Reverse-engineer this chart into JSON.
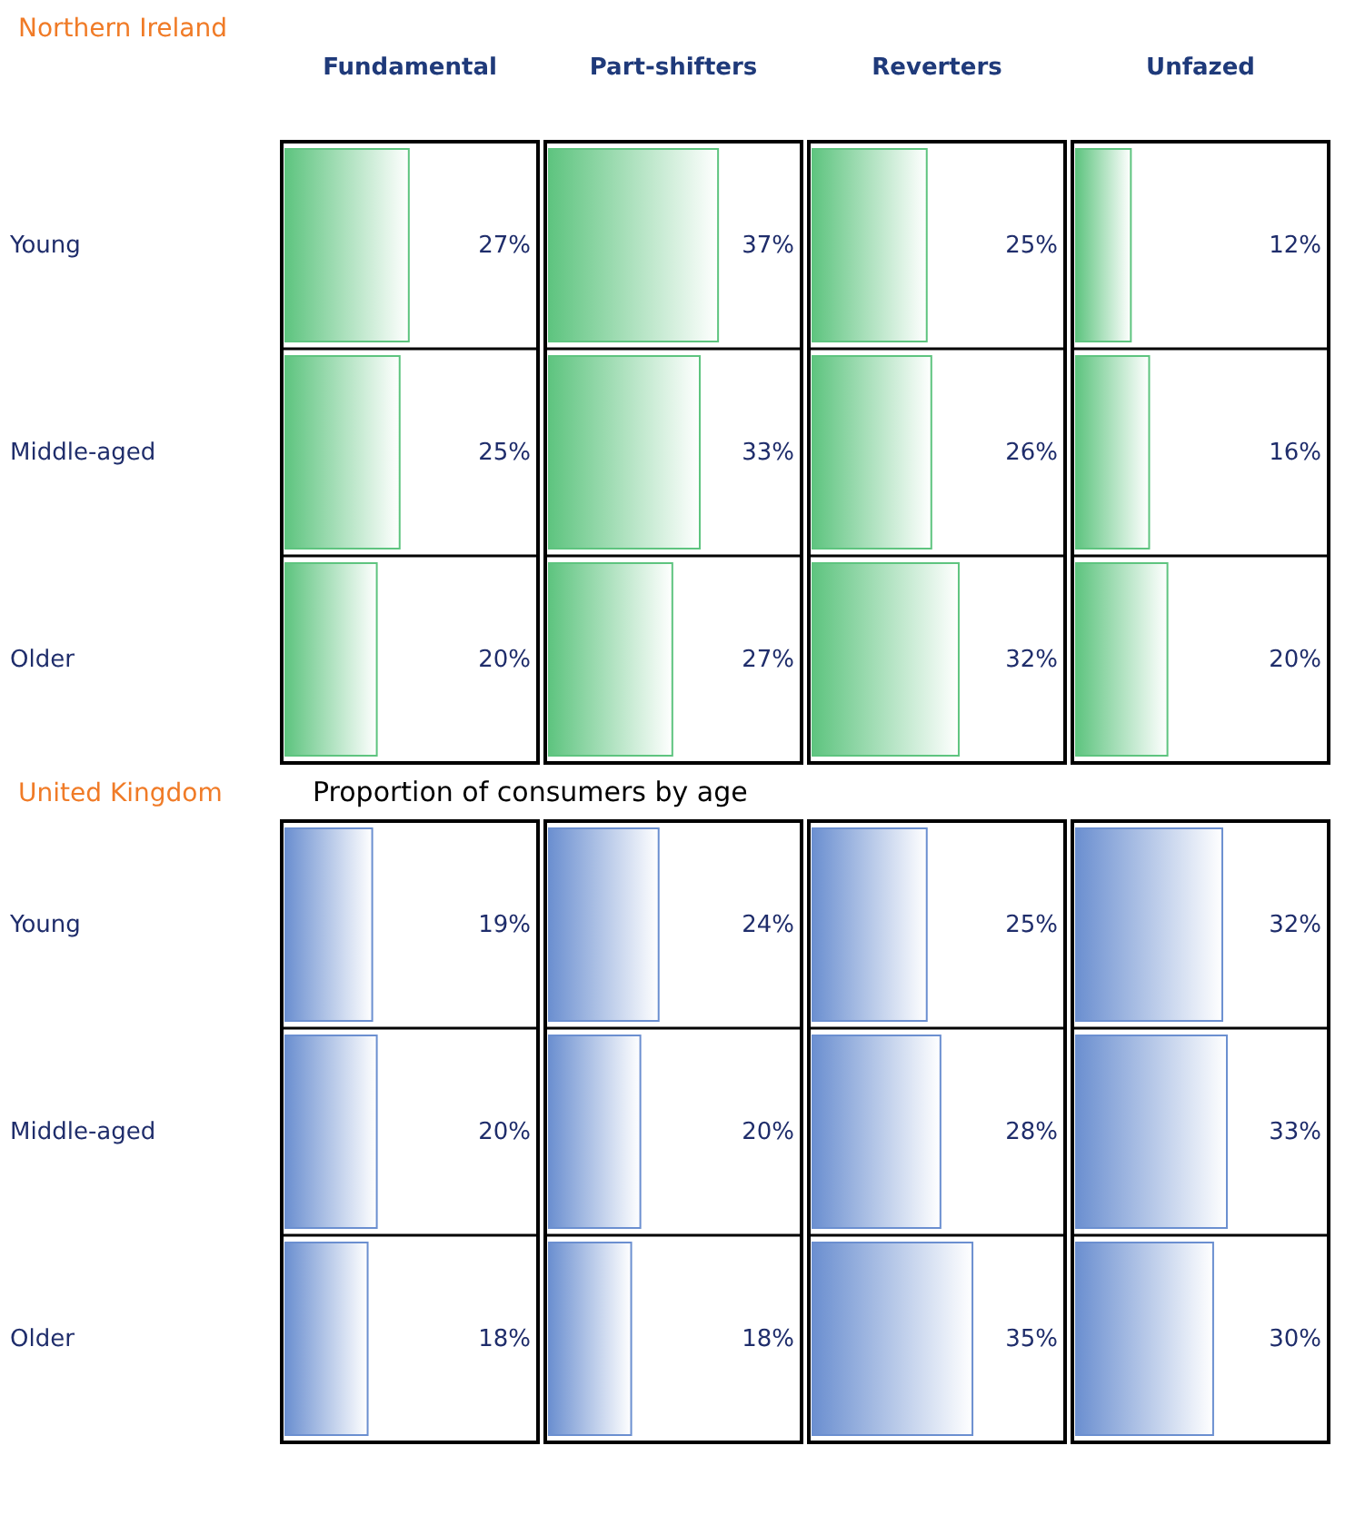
{
  "chart_data": [
    {
      "type": "bar",
      "orientation": "horizontal",
      "title": "Fundamental",
      "annotations": [
        "Northern Ireland"
      ],
      "categories": [
        "Young",
        "Middle-aged",
        "Older"
      ],
      "grid": "y",
      "tick_labels": "y",
      "color": "#5ec47f",
      "values": [
        27,
        25,
        20
      ],
      "value_labels": [
        "27%",
        "25%",
        "20%"
      ]
    },
    {
      "type": "bar",
      "orientation": "horizontal",
      "title": "Part-shifters",
      "categories": [
        null,
        null,
        null
      ],
      "grid": "y",
      "tick_labels": false,
      "color": "#5ec47f",
      "values": [
        37,
        33,
        27
      ],
      "value_labels": [
        "37%",
        "33%",
        "27%"
      ]
    },
    {
      "type": "bar",
      "orientation": "horizontal",
      "title": "Reverters",
      "categories": [
        null,
        null,
        null
      ],
      "grid": "y",
      "tick_labels": false,
      "color": "#5ec47f",
      "values": [
        25,
        26,
        32
      ],
      "value_labels": [
        "25%",
        "26%",
        "32%"
      ]
    },
    {
      "type": "bar",
      "orientation": "horizontal",
      "title": "Unfazed",
      "categories": [
        null,
        null,
        null
      ],
      "grid": "y",
      "tick_labels": false,
      "color": "#5ec47f",
      "values": [
        12,
        16,
        20
      ],
      "value_labels": [
        "12%",
        "16%",
        "20%"
      ]
    },
    {
      "type": "bar",
      "orientation": "horizontal",
      "annotations": [
        "United Kingdom",
        "Proportion of consumers by age"
      ],
      "categories": [
        "Young",
        "Middle-aged",
        "Older"
      ],
      "grid": "y",
      "tick_labels": "y",
      "color": "#6b8fd0",
      "values": [
        19,
        20,
        18
      ],
      "value_labels": [
        "19%",
        "20%",
        "18%"
      ]
    },
    {
      "type": "bar",
      "orientation": "horizontal",
      "categories": [
        null,
        null,
        null
      ],
      "grid": "y",
      "tick_labels": false,
      "color": "#6b8fd0",
      "values": [
        24,
        20,
        18
      ],
      "value_labels": [
        "24%",
        "20%",
        "18%"
      ]
    },
    {
      "type": "bar",
      "orientation": "horizontal",
      "categories": [
        null,
        null,
        null
      ],
      "grid": "y",
      "tick_labels": false,
      "color": "#6b8fd0",
      "values": [
        25,
        28,
        35
      ],
      "value_labels": [
        "25%",
        "28%",
        "35%"
      ]
    },
    {
      "type": "bar",
      "orientation": "horizontal",
      "categories": [
        null,
        null,
        null
      ],
      "grid": "y",
      "tick_labels": false,
      "color": "#6b8fd0",
      "values": [
        32,
        33,
        30
      ],
      "value_labels": [
        "32%",
        "33%",
        "30%"
      ]
    }
  ]
}
